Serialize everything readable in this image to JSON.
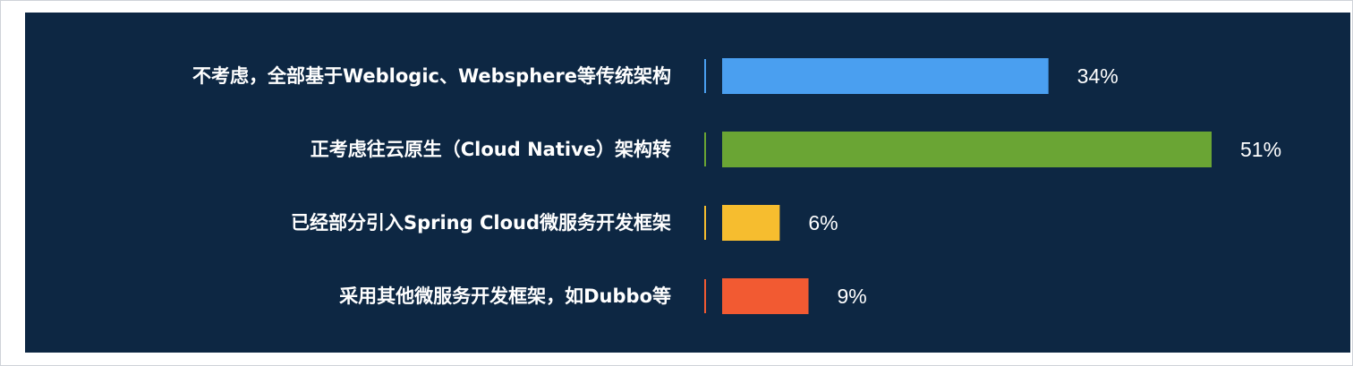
{
  "chart_data": {
    "type": "bar",
    "orientation": "horizontal",
    "categories": [
      "不考虑，全部基于Weblogic、Websphere等传统架构",
      "正考虑往云原生（Cloud Native）架构转",
      "已经部分引入Spring Cloud微服务开发框架",
      "采用其他微服务开发框架，如Dubbo等"
    ],
    "values": [
      34,
      51,
      6,
      9
    ],
    "value_labels": [
      "34%",
      "51%",
      "6%",
      "9%"
    ],
    "colors": [
      "#4a9ff0",
      "#6aa534",
      "#f6bd2f",
      "#f25a32"
    ],
    "xlim": [
      0,
      51
    ],
    "grid": false,
    "legend": "none"
  },
  "panel": {
    "background": "#0d2743"
  }
}
